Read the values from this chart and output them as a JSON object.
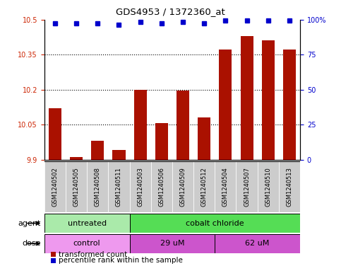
{
  "title": "GDS4953 / 1372360_at",
  "samples": [
    "GSM1240502",
    "GSM1240505",
    "GSM1240508",
    "GSM1240511",
    "GSM1240503",
    "GSM1240506",
    "GSM1240509",
    "GSM1240512",
    "GSM1240504",
    "GSM1240507",
    "GSM1240510",
    "GSM1240513"
  ],
  "bar_values": [
    10.12,
    9.91,
    9.98,
    9.94,
    10.2,
    10.055,
    10.195,
    10.08,
    10.37,
    10.43,
    10.41,
    10.37
  ],
  "dot_values": [
    97,
    97,
    97,
    96,
    98,
    97,
    98,
    97,
    99,
    99,
    99,
    99
  ],
  "bar_color": "#aa1100",
  "dot_color": "#0000cc",
  "ylim_left": [
    9.9,
    10.5
  ],
  "ylim_right": [
    0,
    100
  ],
  "yticks_left": [
    9.9,
    10.05,
    10.2,
    10.35,
    10.5
  ],
  "ytick_labels_left": [
    "9.9",
    "10.05",
    "10.2",
    "10.35",
    "10.5"
  ],
  "yticks_right": [
    0,
    25,
    50,
    75,
    100
  ],
  "ytick_labels_right": [
    "0",
    "25",
    "50",
    "75",
    "100%"
  ],
  "grid_yticks": [
    10.05,
    10.2,
    10.35
  ],
  "agent_groups": [
    {
      "label": "untreated",
      "start": 0,
      "end": 4,
      "color": "#aaeaaa"
    },
    {
      "label": "cobalt chloride",
      "start": 4,
      "end": 12,
      "color": "#55dd55"
    }
  ],
  "dose_groups": [
    {
      "label": "control",
      "start": 0,
      "end": 4,
      "color": "#ee99ee"
    },
    {
      "label": "29 uM",
      "start": 4,
      "end": 8,
      "color": "#cc66cc"
    },
    {
      "label": "62 uM",
      "start": 8,
      "end": 12,
      "color": "#cc66cc"
    }
  ],
  "legend_bar_label": "transformed count",
  "legend_dot_label": "percentile rank within the sample",
  "bar_base": 9.9,
  "bar_width": 0.6,
  "tick_color_left": "#cc2200",
  "tick_color_right": "#0000cc",
  "agent_label": "agent",
  "dose_label": "dose",
  "sample_bg_color": "#cccccc",
  "sample_bg_color2": "#dddddd"
}
